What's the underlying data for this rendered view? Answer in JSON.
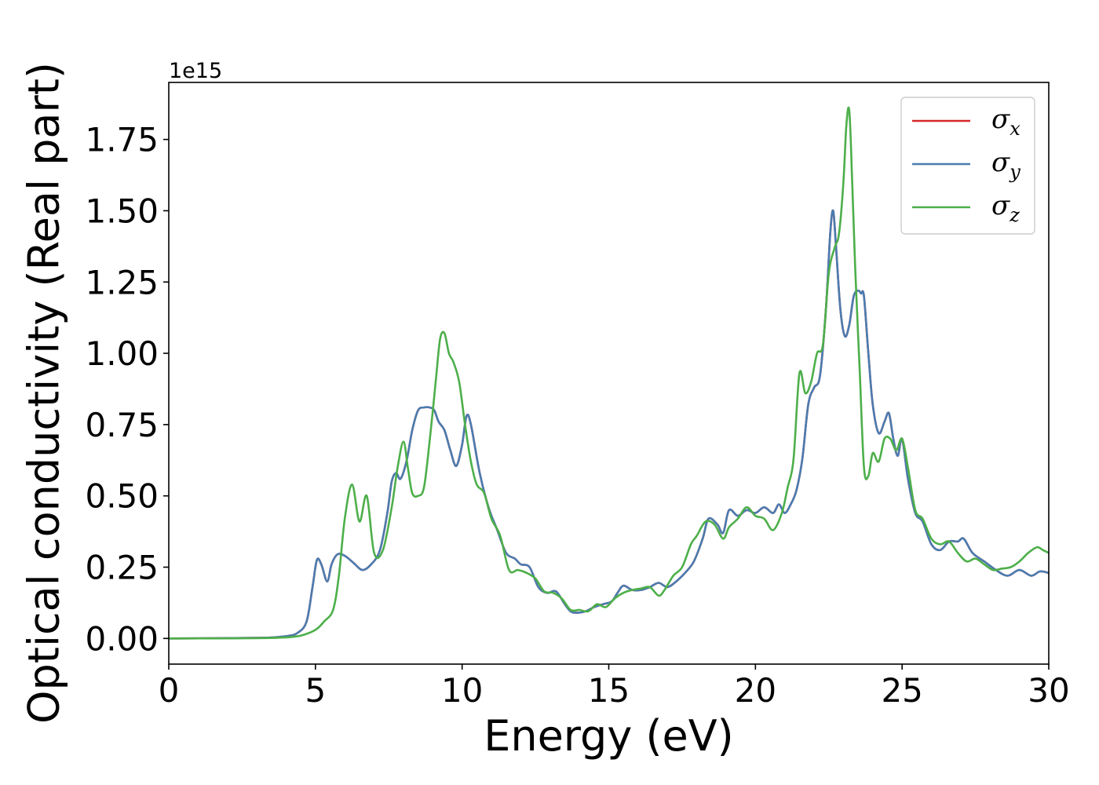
{
  "chart_data": {
    "type": "line",
    "xlabel": "Energy (eV)",
    "ylabel": "Optical conductivity (Real part)",
    "y_offset_text": "1e15",
    "xlim": [
      0,
      30
    ],
    "ylim": [
      -0.09,
      1.95
    ],
    "y_scale_factor": "1e15",
    "grid": false,
    "legend_position": "top-right",
    "x_ticks": [
      0,
      5,
      10,
      15,
      20,
      25,
      30
    ],
    "x_tick_labels": [
      "0",
      "5",
      "10",
      "15",
      "20",
      "25",
      "30"
    ],
    "y_ticks": [
      0.0,
      0.25,
      0.5,
      0.75,
      1.0,
      1.25,
      1.5,
      1.75
    ],
    "y_tick_labels": [
      "0.00",
      "0.25",
      "0.50",
      "0.75",
      "1.00",
      "1.25",
      "1.50",
      "1.75"
    ],
    "series": [
      {
        "name": "σx",
        "legend_symbol": "σ",
        "legend_sub": "x",
        "color": "#d62728",
        "x": [
          0,
          3,
          4,
          4.4,
          4.7,
          4.9,
          5.05,
          5.2,
          5.4,
          5.55,
          5.75,
          6.0,
          6.3,
          6.6,
          6.9,
          7.2,
          7.45,
          7.6,
          7.75,
          7.9,
          8.1,
          8.3,
          8.5,
          8.7,
          8.9,
          9.05,
          9.2,
          9.4,
          9.6,
          9.8,
          10.0,
          10.15,
          10.3,
          10.6,
          10.9,
          11.2,
          11.5,
          11.8,
          12.0,
          12.3,
          12.6,
          12.9,
          13.2,
          13.5,
          13.7,
          13.9,
          14.2,
          14.5,
          14.8,
          15.1,
          15.3,
          15.5,
          15.8,
          16.1,
          16.4,
          16.7,
          17.0,
          17.3,
          17.6,
          17.9,
          18.2,
          18.4,
          18.7,
          18.9,
          19.1,
          19.4,
          19.7,
          20.0,
          20.3,
          20.6,
          20.8,
          21.0,
          21.2,
          21.4,
          21.6,
          21.8,
          22.0,
          22.2,
          22.4,
          22.55,
          22.65,
          22.75,
          22.9,
          23.05,
          23.2,
          23.35,
          23.5,
          23.6,
          23.7,
          23.85,
          24.0,
          24.2,
          24.4,
          24.55,
          24.7,
          24.85,
          25.0,
          25.2,
          25.45,
          25.7,
          26.0,
          26.3,
          26.6,
          26.9,
          27.1,
          27.4,
          27.8,
          28.2,
          28.6,
          29.0,
          29.4,
          29.7,
          30.0
        ],
        "values": [
          0.0,
          0.002,
          0.008,
          0.02,
          0.06,
          0.18,
          0.275,
          0.26,
          0.2,
          0.26,
          0.295,
          0.29,
          0.265,
          0.24,
          0.26,
          0.31,
          0.44,
          0.55,
          0.58,
          0.56,
          0.62,
          0.73,
          0.8,
          0.81,
          0.81,
          0.8,
          0.76,
          0.73,
          0.66,
          0.605,
          0.68,
          0.78,
          0.75,
          0.58,
          0.46,
          0.38,
          0.3,
          0.28,
          0.26,
          0.25,
          0.18,
          0.16,
          0.165,
          0.12,
          0.095,
          0.09,
          0.095,
          0.11,
          0.12,
          0.13,
          0.16,
          0.185,
          0.17,
          0.17,
          0.18,
          0.195,
          0.18,
          0.2,
          0.23,
          0.27,
          0.35,
          0.42,
          0.4,
          0.37,
          0.45,
          0.43,
          0.45,
          0.44,
          0.46,
          0.44,
          0.47,
          0.44,
          0.47,
          0.52,
          0.63,
          0.82,
          0.88,
          0.92,
          1.15,
          1.42,
          1.5,
          1.37,
          1.15,
          1.06,
          1.1,
          1.2,
          1.22,
          1.21,
          1.2,
          1.0,
          0.82,
          0.72,
          0.76,
          0.79,
          0.7,
          0.64,
          0.7,
          0.56,
          0.44,
          0.41,
          0.33,
          0.31,
          0.34,
          0.34,
          0.35,
          0.3,
          0.27,
          0.24,
          0.22,
          0.24,
          0.22,
          0.235,
          0.23
        ]
      },
      {
        "name": "σy",
        "legend_symbol": "σ",
        "legend_sub": "y",
        "color": "#4a7cb0",
        "x": [
          0,
          3,
          4,
          4.4,
          4.7,
          4.9,
          5.05,
          5.2,
          5.4,
          5.55,
          5.75,
          6.0,
          6.3,
          6.6,
          6.9,
          7.2,
          7.45,
          7.6,
          7.75,
          7.9,
          8.1,
          8.3,
          8.5,
          8.7,
          8.9,
          9.05,
          9.2,
          9.4,
          9.6,
          9.8,
          10.0,
          10.15,
          10.3,
          10.6,
          10.9,
          11.2,
          11.5,
          11.8,
          12.0,
          12.3,
          12.6,
          12.9,
          13.2,
          13.5,
          13.7,
          13.9,
          14.2,
          14.5,
          14.8,
          15.1,
          15.3,
          15.5,
          15.8,
          16.1,
          16.4,
          16.7,
          17.0,
          17.3,
          17.6,
          17.9,
          18.2,
          18.4,
          18.7,
          18.9,
          19.1,
          19.4,
          19.7,
          20.0,
          20.3,
          20.6,
          20.8,
          21.0,
          21.2,
          21.4,
          21.6,
          21.8,
          22.0,
          22.2,
          22.4,
          22.55,
          22.65,
          22.75,
          22.9,
          23.05,
          23.2,
          23.35,
          23.5,
          23.6,
          23.7,
          23.85,
          24.0,
          24.2,
          24.4,
          24.55,
          24.7,
          24.85,
          25.0,
          25.2,
          25.45,
          25.7,
          26.0,
          26.3,
          26.6,
          26.9,
          27.1,
          27.4,
          27.8,
          28.2,
          28.6,
          29.0,
          29.4,
          29.7,
          30.0
        ],
        "values": [
          0.0,
          0.002,
          0.008,
          0.02,
          0.06,
          0.18,
          0.275,
          0.26,
          0.2,
          0.26,
          0.295,
          0.29,
          0.265,
          0.24,
          0.26,
          0.31,
          0.44,
          0.55,
          0.58,
          0.56,
          0.62,
          0.73,
          0.8,
          0.81,
          0.81,
          0.8,
          0.76,
          0.73,
          0.66,
          0.605,
          0.68,
          0.78,
          0.75,
          0.58,
          0.46,
          0.38,
          0.3,
          0.28,
          0.26,
          0.25,
          0.18,
          0.16,
          0.165,
          0.12,
          0.095,
          0.09,
          0.095,
          0.11,
          0.12,
          0.13,
          0.16,
          0.185,
          0.17,
          0.17,
          0.18,
          0.195,
          0.18,
          0.2,
          0.23,
          0.27,
          0.35,
          0.42,
          0.4,
          0.37,
          0.45,
          0.43,
          0.45,
          0.44,
          0.46,
          0.44,
          0.47,
          0.44,
          0.47,
          0.52,
          0.63,
          0.82,
          0.88,
          0.92,
          1.15,
          1.42,
          1.5,
          1.37,
          1.15,
          1.06,
          1.1,
          1.2,
          1.22,
          1.21,
          1.2,
          1.0,
          0.82,
          0.72,
          0.76,
          0.79,
          0.7,
          0.64,
          0.7,
          0.56,
          0.44,
          0.41,
          0.33,
          0.31,
          0.34,
          0.34,
          0.35,
          0.3,
          0.27,
          0.24,
          0.22,
          0.24,
          0.22,
          0.235,
          0.23
        ]
      },
      {
        "name": "σz",
        "legend_symbol": "σ",
        "legend_sub": "z",
        "color": "#4daf4a",
        "x": [
          0,
          3,
          4,
          4.5,
          5.0,
          5.3,
          5.6,
          5.8,
          6.0,
          6.25,
          6.5,
          6.75,
          7.0,
          7.3,
          7.6,
          7.8,
          8.0,
          8.15,
          8.3,
          8.5,
          8.7,
          8.9,
          9.1,
          9.25,
          9.4,
          9.55,
          9.7,
          9.9,
          10.1,
          10.3,
          10.5,
          10.75,
          11.0,
          11.3,
          11.6,
          11.9,
          12.2,
          12.5,
          12.8,
          13.1,
          13.4,
          13.7,
          14.0,
          14.3,
          14.6,
          14.9,
          15.2,
          15.5,
          15.8,
          16.1,
          16.4,
          16.7,
          16.9,
          17.2,
          17.5,
          17.8,
          18.0,
          18.3,
          18.6,
          18.9,
          19.1,
          19.4,
          19.7,
          20.0,
          20.3,
          20.6,
          20.9,
          21.1,
          21.3,
          21.5,
          21.7,
          21.9,
          22.1,
          22.3,
          22.5,
          22.7,
          22.85,
          23.0,
          23.1,
          23.2,
          23.3,
          23.4,
          23.55,
          23.7,
          23.85,
          24.0,
          24.2,
          24.4,
          24.6,
          24.8,
          25.0,
          25.2,
          25.45,
          25.7,
          26.0,
          26.3,
          26.6,
          26.9,
          27.2,
          27.5,
          27.8,
          28.1,
          28.4,
          28.7,
          29.0,
          29.3,
          29.6,
          29.8,
          30.0
        ],
        "values": [
          0.0,
          0.001,
          0.004,
          0.01,
          0.03,
          0.06,
          0.1,
          0.22,
          0.42,
          0.54,
          0.41,
          0.5,
          0.3,
          0.31,
          0.46,
          0.6,
          0.69,
          0.6,
          0.51,
          0.5,
          0.53,
          0.7,
          0.9,
          1.05,
          1.07,
          1.0,
          0.97,
          0.9,
          0.75,
          0.62,
          0.54,
          0.51,
          0.42,
          0.36,
          0.24,
          0.24,
          0.23,
          0.21,
          0.165,
          0.16,
          0.14,
          0.1,
          0.1,
          0.095,
          0.12,
          0.11,
          0.14,
          0.16,
          0.17,
          0.175,
          0.18,
          0.15,
          0.17,
          0.22,
          0.25,
          0.33,
          0.36,
          0.41,
          0.4,
          0.35,
          0.39,
          0.42,
          0.46,
          0.43,
          0.42,
          0.38,
          0.44,
          0.53,
          0.63,
          0.93,
          0.86,
          0.9,
          1.0,
          1.03,
          1.28,
          1.37,
          1.42,
          1.6,
          1.8,
          1.85,
          1.6,
          1.3,
          0.95,
          0.6,
          0.57,
          0.65,
          0.62,
          0.7,
          0.7,
          0.66,
          0.7,
          0.6,
          0.45,
          0.42,
          0.35,
          0.33,
          0.34,
          0.3,
          0.27,
          0.28,
          0.26,
          0.24,
          0.245,
          0.25,
          0.27,
          0.3,
          0.32,
          0.31,
          0.3
        ]
      }
    ]
  }
}
